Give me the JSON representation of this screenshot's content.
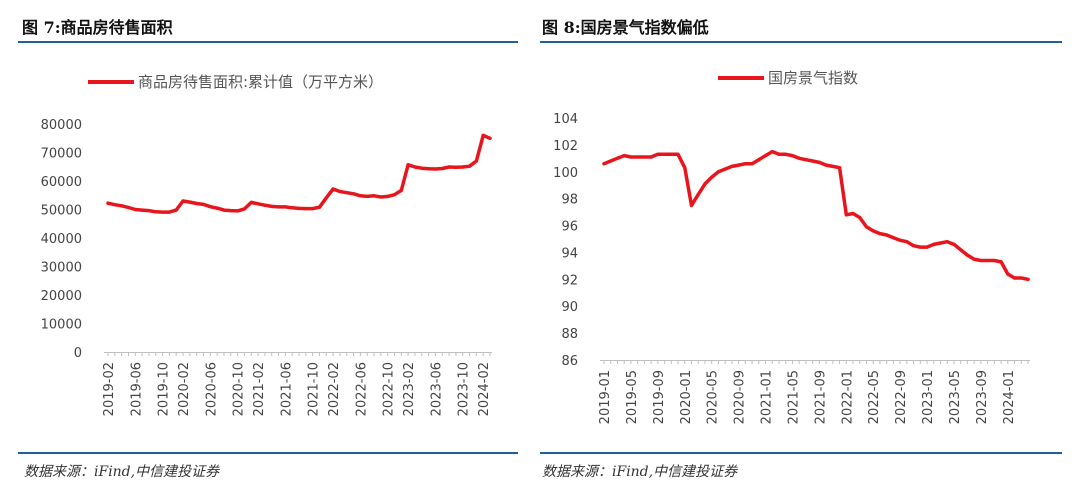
{
  "charts": [
    {
      "title": "图 7:商品房待售面积",
      "source": "数据来源：iFind,中信建投证券"
    },
    {
      "title": "图 8:国房景气指数偏低",
      "source": "数据来源：iFind,中信建投证券"
    }
  ],
  "chart_data": [
    {
      "type": "line",
      "legend_placement": "top-center",
      "series": [
        {
          "name": "商品房待售面积:累计值（万平方米）",
          "color": "#e8161c",
          "x": [
            "2019-02",
            "2019-03",
            "2019-04",
            "2019-05",
            "2019-06",
            "2019-07",
            "2019-08",
            "2019-09",
            "2019-10",
            "2019-11",
            "2019-12",
            "2020-02",
            "2020-03",
            "2020-04",
            "2020-05",
            "2020-06",
            "2020-07",
            "2020-08",
            "2020-09",
            "2020-10",
            "2020-11",
            "2020-12",
            "2021-02",
            "2021-03",
            "2021-04",
            "2021-05",
            "2021-06",
            "2021-07",
            "2021-08",
            "2021-09",
            "2021-10",
            "2021-11",
            "2021-12",
            "2022-02",
            "2022-03",
            "2022-04",
            "2022-05",
            "2022-06",
            "2022-07",
            "2022-08",
            "2022-09",
            "2022-10",
            "2022-11",
            "2022-12",
            "2023-02",
            "2023-03",
            "2023-04",
            "2023-05",
            "2023-06",
            "2023-07",
            "2023-08",
            "2023-09",
            "2023-10",
            "2023-11",
            "2023-12",
            "2024-02",
            "2024-03"
          ],
          "values": [
            52200,
            51700,
            51300,
            50700,
            50000,
            49800,
            49600,
            49200,
            49100,
            49100,
            49800,
            53000,
            52600,
            52100,
            51800,
            51000,
            50500,
            49800,
            49600,
            49500,
            50200,
            52500,
            52000,
            51500,
            51100,
            50900,
            50900,
            50600,
            50400,
            50300,
            50300,
            50800,
            54100,
            57200,
            56300,
            55900,
            55500,
            54800,
            54600,
            54800,
            54400,
            54600,
            55200,
            56700,
            65700,
            64900,
            64500,
            64300,
            64200,
            64400,
            64900,
            64800,
            64900,
            65200,
            67000,
            76000,
            75000
          ]
        }
      ],
      "categories": [
        "2019-02",
        "2019-06",
        "2019-10",
        "2020-02",
        "2020-06",
        "2020-10",
        "2021-02",
        "2021-06",
        "2021-10",
        "2022-02",
        "2022-06",
        "2022-10",
        "2023-02",
        "2023-06",
        "2023-10",
        "2024-02"
      ],
      "yticks": [
        "80000",
        "70000",
        "60000",
        "50000",
        "40000",
        "30000",
        "20000",
        "10000",
        "0"
      ],
      "ylim": [
        0,
        80000
      ],
      "xlabel": "",
      "ylabel": ""
    },
    {
      "type": "line",
      "legend_placement": "top-center",
      "series": [
        {
          "name": "国房景气指数",
          "color": "#e8161c",
          "x": [
            "2019-01",
            "2019-02",
            "2019-03",
            "2019-04",
            "2019-05",
            "2019-06",
            "2019-07",
            "2019-08",
            "2019-09",
            "2019-10",
            "2019-11",
            "2019-12",
            "2020-01",
            "2020-02",
            "2020-03",
            "2020-04",
            "2020-05",
            "2020-06",
            "2020-07",
            "2020-08",
            "2020-09",
            "2020-10",
            "2020-11",
            "2020-12",
            "2021-01",
            "2021-02",
            "2021-03",
            "2021-04",
            "2021-05",
            "2021-06",
            "2021-07",
            "2021-08",
            "2021-09",
            "2021-10",
            "2021-11",
            "2021-12",
            "2022-01",
            "2022-02",
            "2022-03",
            "2022-04",
            "2022-05",
            "2022-06",
            "2022-07",
            "2022-08",
            "2022-09",
            "2022-10",
            "2022-11",
            "2022-12",
            "2023-01",
            "2023-02",
            "2023-03",
            "2023-04",
            "2023-05",
            "2023-06",
            "2023-07",
            "2023-08",
            "2023-09",
            "2023-10",
            "2023-11",
            "2023-12",
            "2024-01",
            "2024-02",
            "2024-03",
            "2024-04"
          ],
          "values": [
            100.6,
            100.8,
            101.0,
            101.2,
            101.1,
            101.1,
            101.1,
            101.1,
            101.3,
            101.3,
            101.3,
            101.3,
            100.3,
            97.5,
            98.3,
            99.1,
            99.6,
            100.0,
            100.2,
            100.4,
            100.5,
            100.6,
            100.6,
            100.9,
            101.2,
            101.5,
            101.3,
            101.3,
            101.2,
            101.0,
            100.9,
            100.8,
            100.7,
            100.5,
            100.4,
            100.3,
            96.8,
            96.9,
            96.6,
            95.9,
            95.6,
            95.4,
            95.3,
            95.1,
            94.9,
            94.8,
            94.5,
            94.4,
            94.4,
            94.6,
            94.7,
            94.8,
            94.6,
            94.2,
            93.8,
            93.5,
            93.4,
            93.4,
            93.4,
            93.3,
            92.4,
            92.1,
            92.1,
            92.0
          ]
        }
      ],
      "categories": [
        "2019-01",
        "2019-05",
        "2019-09",
        "2020-01",
        "2020-05",
        "2020-09",
        "2021-01",
        "2021-05",
        "2021-09",
        "2022-01",
        "2022-05",
        "2022-09",
        "2023-01",
        "2023-05",
        "2023-09",
        "2024-01"
      ],
      "yticks": [
        "104",
        "102",
        "100",
        "98",
        "96",
        "94",
        "92",
        "90",
        "88",
        "86"
      ],
      "ylim": [
        86,
        104
      ],
      "xlabel": "",
      "ylabel": ""
    }
  ]
}
